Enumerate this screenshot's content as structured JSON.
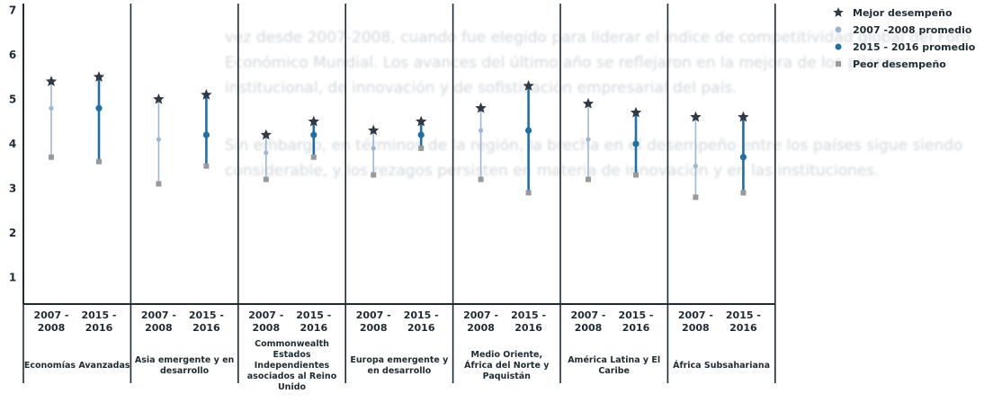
{
  "background_text": {
    "paragraphs": [
      "vez desde 2007-2008, cuando fue elegido para liderar el índice de competitividad global del Foro Económico Mundial. Los avances del último año se reflejaron en la mejora de los pilares institucional, de innovación y de sofisticación empresarial del país.",
      "Sin embargo, en términos de la región, la brecha en el desempeño entre los países sigue siendo considerable, y los rezagos persisten en materia de innovación y en las instituciones."
    ]
  },
  "chart_data": {
    "type": "range_dot",
    "ylim": [
      1,
      7
    ],
    "yticks": [
      1,
      2,
      3,
      4,
      5,
      6,
      7
    ],
    "legend": {
      "items": [
        {
          "key": "best",
          "label": "Mejor desempeño"
        },
        {
          "key": "avg2007",
          "label": "2007 -2008 promedio"
        },
        {
          "key": "avg2015",
          "label": "2015 - 2016 promedio"
        },
        {
          "key": "worst",
          "label": "Peor desempeño"
        }
      ]
    },
    "colors": {
      "best": "#2f3a44",
      "avg2007": "#9db7d4",
      "avg2015": "#1f6fa8",
      "worst": "#9a9a9a",
      "axis": "#1f2b33"
    },
    "regions": [
      {
        "name": "Economías Avanzadas",
        "periods": [
          {
            "label": "2007 - 2008",
            "series": "avg2007",
            "best": 5.4,
            "avg": 4.8,
            "worst": 3.7
          },
          {
            "label": "2015 - 2016",
            "series": "avg2015",
            "best": 5.5,
            "avg": 4.8,
            "worst": 3.6
          }
        ]
      },
      {
        "name": "Asia emergente y en desarrollo",
        "periods": [
          {
            "label": "2007 - 2008",
            "series": "avg2007",
            "best": 5.0,
            "avg": 4.1,
            "worst": 3.1
          },
          {
            "label": "2015 - 2016",
            "series": "avg2015",
            "best": 5.1,
            "avg": 4.2,
            "worst": 3.5
          }
        ]
      },
      {
        "name": "Commonwealth Estados Independientes asociados al Reino Unido",
        "periods": [
          {
            "label": "2007 - 2008",
            "series": "avg2007",
            "best": 4.2,
            "avg": 3.8,
            "worst": 3.2
          },
          {
            "label": "2015 - 2016",
            "series": "avg2015",
            "best": 4.5,
            "avg": 4.2,
            "worst": 3.7
          }
        ]
      },
      {
        "name": "Europa emergente y en desarrollo",
        "periods": [
          {
            "label": "2007 - 2008",
            "series": "avg2007",
            "best": 4.3,
            "avg": 3.9,
            "worst": 3.3
          },
          {
            "label": "2015 - 2016",
            "series": "avg2015",
            "best": 4.5,
            "avg": 4.2,
            "worst": 3.9
          }
        ]
      },
      {
        "name": "Medio Oriente, África del Norte y Paquistán",
        "periods": [
          {
            "label": "2007 - 2008",
            "series": "avg2007",
            "best": 4.8,
            "avg": 4.3,
            "worst": 3.2
          },
          {
            "label": "2015 - 2016",
            "series": "avg2015",
            "best": 5.3,
            "avg": 4.3,
            "worst": 2.9
          }
        ]
      },
      {
        "name": "América Latina y El Caribe",
        "periods": [
          {
            "label": "2007 - 2008",
            "series": "avg2007",
            "best": 4.9,
            "avg": 4.1,
            "worst": 3.2
          },
          {
            "label": "2015 - 2016",
            "series": "avg2015",
            "best": 4.7,
            "avg": 4.0,
            "worst": 3.3
          }
        ]
      },
      {
        "name": "África Subsahariana",
        "periods": [
          {
            "label": "2007 - 2008",
            "series": "avg2007",
            "best": 4.6,
            "avg": 3.5,
            "worst": 2.8
          },
          {
            "label": "2015 - 2016",
            "series": "avg2015",
            "best": 4.6,
            "avg": 3.7,
            "worst": 2.9
          }
        ]
      }
    ]
  }
}
